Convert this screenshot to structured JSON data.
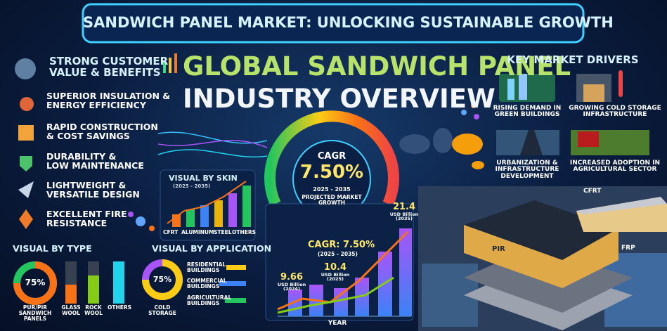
{
  "header": {
    "title": "SANDWICH PANEL MARKET: UNLOCKING SUSTAINABLE GROWTH"
  },
  "hero": {
    "lines": [
      "GLOBAL SANDWICH PANEL",
      "INDUSTRY OVERVIEW"
    ]
  },
  "benefits": {
    "heading": [
      "STRONG CUSTOMER",
      "VALUE & BENEFITS"
    ],
    "items": [
      [
        "SUPERIOR INSULATION &",
        "ENERGY EFFICIENCY"
      ],
      [
        "RAPID CONSTRUCTION",
        "& COST SAVINGS"
      ],
      [
        "DURABILITY &",
        "LOW MAINTENANCE"
      ],
      [
        "LIGHTWEIGHT &",
        "VERSATILE DESIGN"
      ],
      [
        "EXCELLENT FIRE",
        "RESISTANCE"
      ]
    ]
  },
  "skin": {
    "title": "VISUAL BY SKIN",
    "period": "(2025 - 2035)",
    "labels": [
      "CFRT",
      "ALUMINUM",
      "STEEL",
      "OTHERS"
    ]
  },
  "gauge": {
    "label": "CAGR",
    "value": "7.50%",
    "period": "2025 - 2035",
    "caption": [
      "PROJECTED MARKET",
      "GROWTH"
    ]
  },
  "type": {
    "title": "VISUAL BY TYPE",
    "donut": "75%",
    "labels": [
      [
        "PUR/PIR",
        "SANDWICH",
        "PANELS"
      ],
      [
        "GLASS",
        "WOOL"
      ],
      [
        "ROCK",
        "WOOL"
      ],
      [
        "OTHERS"
      ]
    ]
  },
  "application": {
    "title": "VISUAL BY APPLICATION",
    "donut": "75%",
    "donut_label": [
      "COLD",
      "STORAGE"
    ],
    "labels": [
      [
        "RESIDENTIAL",
        "BUILDINGS"
      ],
      [
        "COMMERCIAL",
        "BUILDINGS"
      ],
      [
        "AGRICULTURAL",
        "BUILDINGS"
      ]
    ]
  },
  "growth": {
    "cagr": "CAGR: 7.50%",
    "period": "(2025 - 2035)",
    "points": [
      {
        "value": "9.66",
        "unit": "USD Billion",
        "year": "(2024)"
      },
      {
        "value": "10.4",
        "unit": "USD Billion",
        "year": "(2025)"
      },
      {
        "value": "21.4",
        "unit": "USD Billion",
        "year": "(2035)"
      }
    ],
    "x_label": "YEAR"
  },
  "drivers": {
    "title": "KEY MARKET DRIVERS",
    "items": [
      [
        "RISING DEMAND IN",
        "GREEN BUILDINGS"
      ],
      [
        "GROWING COLD STORAGE",
        "INFRASTRUCTURE"
      ],
      [
        "URBANIZATION &",
        "INFRASTRUCTURE",
        "DEVELOPMENT"
      ],
      [
        "INCREASED ADOPTION IN",
        "AGRICULTURAL SECTOR"
      ]
    ]
  },
  "panel": {
    "labels": [
      "CFRT",
      "PIR",
      "FRP"
    ]
  }
}
